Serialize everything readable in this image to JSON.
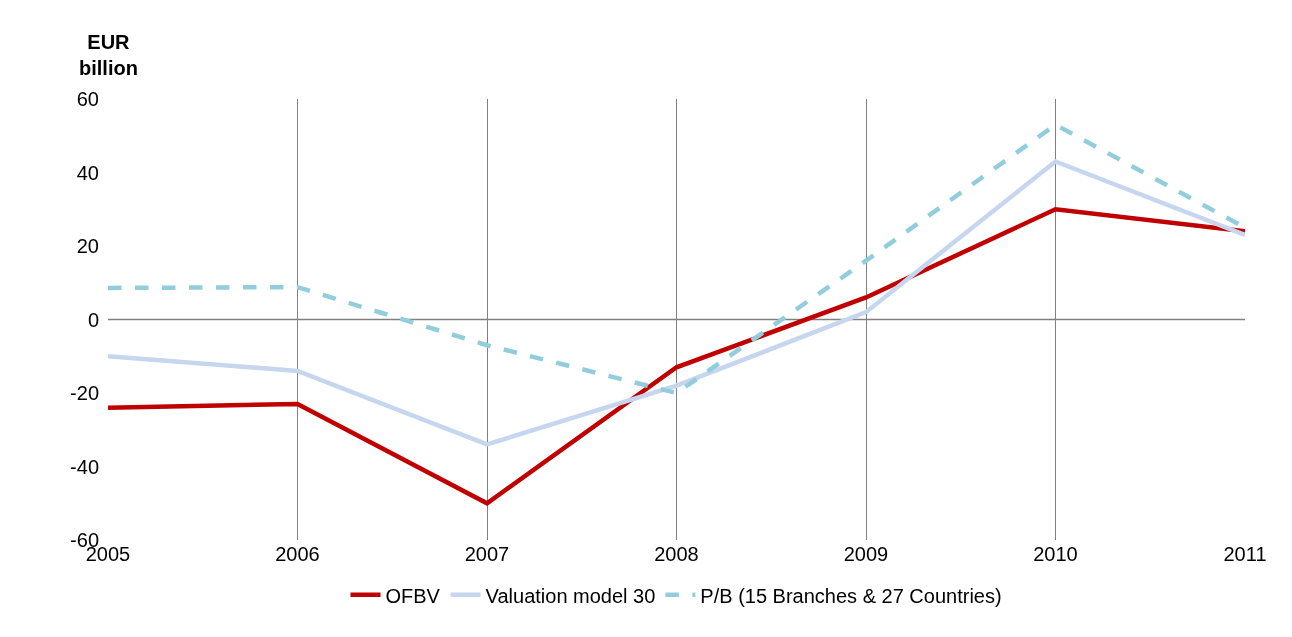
{
  "chart_data": {
    "type": "line",
    "ylabel": "EUR billion",
    "x": [
      2005,
      2006,
      2007,
      2008,
      2009,
      2010,
      2011
    ],
    "series": [
      {
        "name": "OFBV",
        "color": "#c00000",
        "values": [
          -24,
          -23,
          -50,
          -13,
          6,
          30,
          24
        ]
      },
      {
        "name": "Valuation model 30",
        "color": "#c6d6ee",
        "values": [
          -10,
          -14,
          -34,
          -18,
          2,
          43,
          23
        ]
      },
      {
        "name": "P/B (15 Branches & 27 Countries)",
        "color": "#92cddc",
        "line_style": "dashed",
        "values": [
          8.6,
          8.8,
          -7,
          -20,
          16,
          53,
          25
        ]
      }
    ],
    "xlim": [
      2005,
      2011
    ],
    "xticks": [
      2005,
      2006,
      2007,
      2008,
      2009,
      2010,
      2011
    ],
    "ylim": [
      -60,
      60
    ],
    "yticks": [
      -60,
      -40,
      -20,
      0,
      20,
      40,
      60
    ],
    "grid": "x",
    "legend": "bottom",
    "marker": "none",
    "line_style": "solid",
    "ref_lines": [
      {
        "axis": "y",
        "value": 0,
        "color": "#808080"
      }
    ]
  }
}
